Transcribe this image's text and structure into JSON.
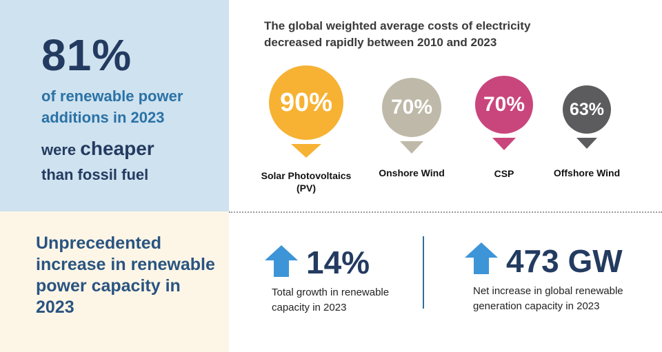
{
  "headline": {
    "percent": "81%",
    "line1": "of renewable power additions in 2023",
    "line2_prefix": "were",
    "line2_emphasis": "cheaper",
    "line3": "than fossil fuel"
  },
  "bottom_left": {
    "text": "Unprecedented increase in renewable power capacity in 2023"
  },
  "chart_data": {
    "type": "other",
    "title": "The global weighted average costs of electricity decreased rapidly between 2010 and 2023",
    "items": [
      {
        "label": "Solar Photovoltaics (PV)",
        "value": 90,
        "display": "90%",
        "color": "#f7b233"
      },
      {
        "label": "Onshore Wind",
        "value": 70,
        "display": "70%",
        "color": "#bfb9a9"
      },
      {
        "label": "CSP",
        "value": 70,
        "display": "70%",
        "color": "#c9467d"
      },
      {
        "label": "Offshore Wind",
        "value": 63,
        "display": "63%",
        "color": "#5c5c5e"
      }
    ]
  },
  "stats": [
    {
      "value": "14%",
      "description": "Total growth in renewable capacity in 2023"
    },
    {
      "value": "473 GW",
      "description": "Net increase in global renewable generation capacity in 2023"
    }
  ],
  "colors": {
    "navy": "#233b60",
    "blue_text": "#2a72a6",
    "arrow_blue": "#3d95d8",
    "panel_blue": "#cfe2ef",
    "panel_cream": "#fdf6e7"
  }
}
